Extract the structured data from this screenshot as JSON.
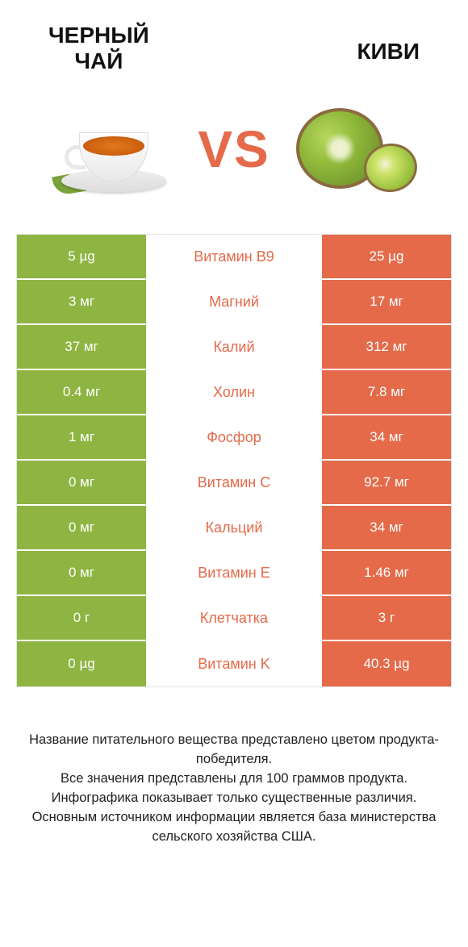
{
  "titles": {
    "left": "ЧЕРНЫЙ\nЧАЙ",
    "right": "КИВИ",
    "vs": "VS"
  },
  "colors": {
    "left_bg": "#8eb442",
    "right_bg": "#e46a4a",
    "mid_text_winner_right": "#e46a4a",
    "row_border": "#ffffff",
    "table_border": "#e5e5e5",
    "title_color": "#111111",
    "vs_color": "#e46a4a"
  },
  "rows": [
    {
      "left": "5 µg",
      "label": "Витамин B9",
      "right": "25 µg"
    },
    {
      "left": "3 мг",
      "label": "Магний",
      "right": "17 мг"
    },
    {
      "left": "37 мг",
      "label": "Калий",
      "right": "312 мг"
    },
    {
      "left": "0.4 мг",
      "label": "Холин",
      "right": "7.8 мг"
    },
    {
      "left": "1 мг",
      "label": "Фосфор",
      "right": "34 мг"
    },
    {
      "left": "0 мг",
      "label": "Витамин C",
      "right": "92.7 мг"
    },
    {
      "left": "0 мг",
      "label": "Кальций",
      "right": "34 мг"
    },
    {
      "left": "0 мг",
      "label": "Витамин E",
      "right": "1.46 мг"
    },
    {
      "left": "0 г",
      "label": "Клетчатка",
      "right": "3 г"
    },
    {
      "left": "0 µg",
      "label": "Витамин K",
      "right": "40.3 µg"
    }
  ],
  "footer": "Название питательного вещества представлено цветом продукта-победителя.\nВсе значения представлены для 100 граммов продукта.\nИнфографика показывает только существенные различия.\nОсновным источником информации является база министерства сельского хозяйства США."
}
